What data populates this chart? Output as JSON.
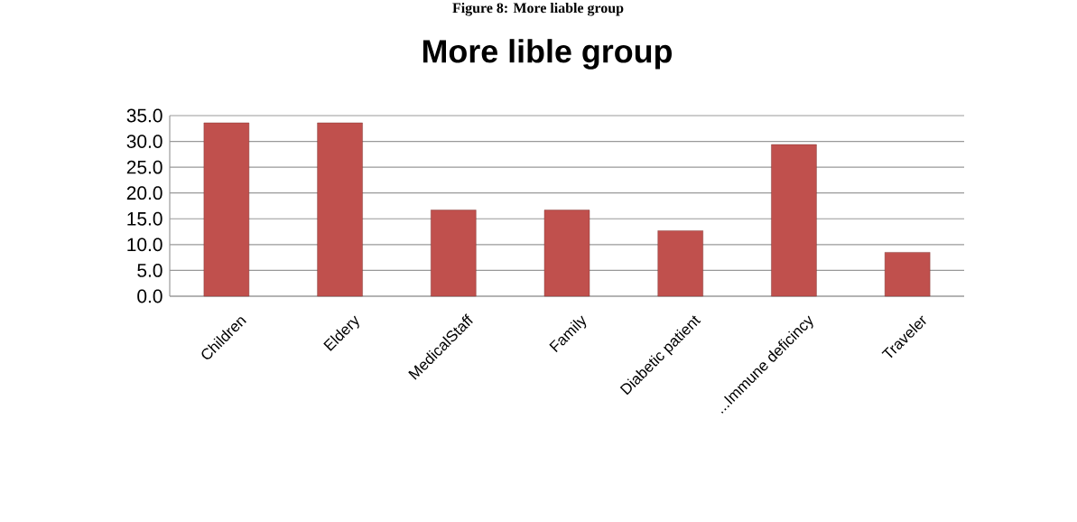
{
  "chart_data": {
    "type": "bar",
    "title": "More lible group",
    "annotations": [
      "Figure 8: More liable group"
    ],
    "categories": [
      "Children",
      "Eldery",
      "MedicalStaff",
      "Family",
      "Diabetic patient",
      "...Immune deficincy",
      "Traveler"
    ],
    "values": [
      33.6,
      33.6,
      16.7,
      16.7,
      12.7,
      29.4,
      8.5
    ],
    "color": "#c0504d",
    "ylim": [
      0,
      35
    ],
    "yticks": [
      {
        "value": 0,
        "label": "0.0"
      },
      {
        "value": 5,
        "label": "5.0"
      },
      {
        "value": 10,
        "label": "10.0"
      },
      {
        "value": 15,
        "label": "15.0"
      },
      {
        "value": 20,
        "label": "20.0"
      },
      {
        "value": 25,
        "label": "25.0"
      },
      {
        "value": 30,
        "label": "30.0"
      },
      {
        "value": 35,
        "label": "35.0"
      }
    ],
    "grid": "y"
  }
}
